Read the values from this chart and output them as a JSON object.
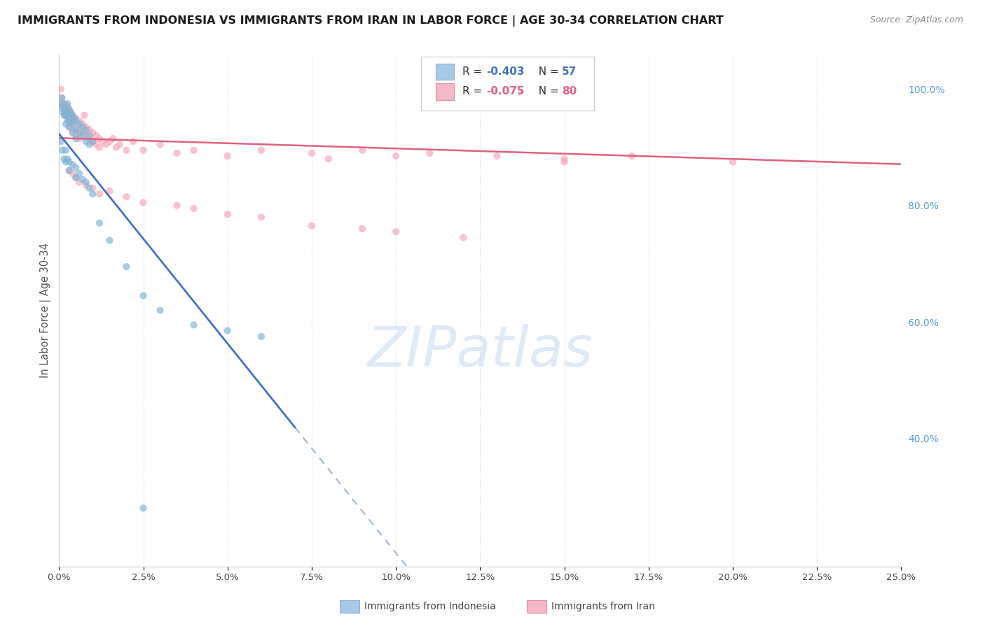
{
  "title": "IMMIGRANTS FROM INDONESIA VS IMMIGRANTS FROM IRAN IN LABOR FORCE | AGE 30-34 CORRELATION CHART",
  "source": "Source: ZipAtlas.com",
  "ylabel": "In Labor Force | Age 30-34",
  "xlim": [
    0.0,
    0.25
  ],
  "ylim": [
    0.18,
    1.06
  ],
  "right_yticks": [
    1.0,
    0.8,
    0.6,
    0.4
  ],
  "right_yticklabels": [
    "100.0%",
    "80.0%",
    "60.0%",
    "40.0%"
  ],
  "xticks": [
    0.0,
    0.025,
    0.05,
    0.075,
    0.1,
    0.125,
    0.15,
    0.175,
    0.2,
    0.225,
    0.25
  ],
  "xticklabels": [
    "0.0%",
    "2.5%",
    "5.0%",
    "7.5%",
    "10.0%",
    "12.5%",
    "15.0%",
    "17.5%",
    "20.0%",
    "22.5%",
    "25.0%"
  ],
  "background_color": "#ffffff",
  "grid_color": "#d8d8d8",
  "indonesia_color": "#7fb3d3",
  "iran_color": "#f4a7b9",
  "indonesia_line_color": "#4472c4",
  "iran_line_color": "#e06080",
  "trend_dashed_color": "#a0b8d0",
  "legend_indo_color": "#a8c8e8",
  "legend_iran_color": "#f4b8c8",
  "scatter_size": 55,
  "scatter_alpha": 0.65,
  "indonesia_scatter": [
    [
      0.0005,
      0.97
    ],
    [
      0.0008,
      0.985
    ],
    [
      0.001,
      0.975
    ],
    [
      0.0012,
      0.96
    ],
    [
      0.0015,
      0.965
    ],
    [
      0.0015,
      0.955
    ],
    [
      0.002,
      0.97
    ],
    [
      0.002,
      0.955
    ],
    [
      0.002,
      0.94
    ],
    [
      0.0025,
      0.975
    ],
    [
      0.0025,
      0.96
    ],
    [
      0.0025,
      0.945
    ],
    [
      0.003,
      0.965
    ],
    [
      0.003,
      0.95
    ],
    [
      0.003,
      0.935
    ],
    [
      0.0035,
      0.96
    ],
    [
      0.0035,
      0.945
    ],
    [
      0.004,
      0.955
    ],
    [
      0.004,
      0.94
    ],
    [
      0.004,
      0.925
    ],
    [
      0.0045,
      0.95
    ],
    [
      0.005,
      0.945
    ],
    [
      0.005,
      0.93
    ],
    [
      0.005,
      0.915
    ],
    [
      0.006,
      0.94
    ],
    [
      0.006,
      0.925
    ],
    [
      0.007,
      0.935
    ],
    [
      0.007,
      0.92
    ],
    [
      0.008,
      0.93
    ],
    [
      0.008,
      0.91
    ],
    [
      0.009,
      0.92
    ],
    [
      0.009,
      0.905
    ],
    [
      0.01,
      0.91
    ],
    [
      0.0005,
      0.91
    ],
    [
      0.001,
      0.895
    ],
    [
      0.0015,
      0.88
    ],
    [
      0.002,
      0.895
    ],
    [
      0.002,
      0.875
    ],
    [
      0.0025,
      0.88
    ],
    [
      0.003,
      0.875
    ],
    [
      0.003,
      0.86
    ],
    [
      0.004,
      0.87
    ],
    [
      0.005,
      0.865
    ],
    [
      0.005,
      0.848
    ],
    [
      0.006,
      0.855
    ],
    [
      0.007,
      0.845
    ],
    [
      0.008,
      0.84
    ],
    [
      0.009,
      0.83
    ],
    [
      0.01,
      0.82
    ],
    [
      0.012,
      0.77
    ],
    [
      0.015,
      0.74
    ],
    [
      0.02,
      0.695
    ],
    [
      0.025,
      0.645
    ],
    [
      0.03,
      0.62
    ],
    [
      0.04,
      0.595
    ],
    [
      0.05,
      0.585
    ],
    [
      0.06,
      0.575
    ],
    [
      0.025,
      0.28
    ]
  ],
  "iran_scatter": [
    [
      0.0005,
      1.0
    ],
    [
      0.0008,
      0.985
    ],
    [
      0.001,
      0.975
    ],
    [
      0.0012,
      0.97
    ],
    [
      0.0015,
      0.975
    ],
    [
      0.0015,
      0.96
    ],
    [
      0.002,
      0.965
    ],
    [
      0.002,
      0.955
    ],
    [
      0.0025,
      0.97
    ],
    [
      0.0025,
      0.955
    ],
    [
      0.003,
      0.965
    ],
    [
      0.003,
      0.948
    ],
    [
      0.003,
      0.935
    ],
    [
      0.0035,
      0.96
    ],
    [
      0.004,
      0.955
    ],
    [
      0.004,
      0.942
    ],
    [
      0.004,
      0.928
    ],
    [
      0.005,
      0.95
    ],
    [
      0.005,
      0.935
    ],
    [
      0.005,
      0.92
    ],
    [
      0.006,
      0.945
    ],
    [
      0.006,
      0.93
    ],
    [
      0.006,
      0.915
    ],
    [
      0.007,
      0.94
    ],
    [
      0.007,
      0.925
    ],
    [
      0.0075,
      0.955
    ],
    [
      0.008,
      0.935
    ],
    [
      0.008,
      0.92
    ],
    [
      0.009,
      0.93
    ],
    [
      0.009,
      0.915
    ],
    [
      0.01,
      0.925
    ],
    [
      0.01,
      0.91
    ],
    [
      0.011,
      0.92
    ],
    [
      0.011,
      0.905
    ],
    [
      0.012,
      0.915
    ],
    [
      0.012,
      0.9
    ],
    [
      0.013,
      0.91
    ],
    [
      0.014,
      0.905
    ],
    [
      0.015,
      0.91
    ],
    [
      0.016,
      0.915
    ],
    [
      0.017,
      0.9
    ],
    [
      0.018,
      0.905
    ],
    [
      0.02,
      0.895
    ],
    [
      0.022,
      0.91
    ],
    [
      0.025,
      0.895
    ],
    [
      0.03,
      0.905
    ],
    [
      0.035,
      0.89
    ],
    [
      0.04,
      0.895
    ],
    [
      0.05,
      0.885
    ],
    [
      0.06,
      0.895
    ],
    [
      0.075,
      0.89
    ],
    [
      0.09,
      0.895
    ],
    [
      0.1,
      0.885
    ],
    [
      0.11,
      0.89
    ],
    [
      0.13,
      0.885
    ],
    [
      0.15,
      0.88
    ],
    [
      0.17,
      0.885
    ],
    [
      0.003,
      0.86
    ],
    [
      0.004,
      0.855
    ],
    [
      0.005,
      0.848
    ],
    [
      0.006,
      0.84
    ],
    [
      0.008,
      0.835
    ],
    [
      0.01,
      0.83
    ],
    [
      0.012,
      0.82
    ],
    [
      0.015,
      0.825
    ],
    [
      0.02,
      0.815
    ],
    [
      0.025,
      0.805
    ],
    [
      0.035,
      0.8
    ],
    [
      0.04,
      0.795
    ],
    [
      0.05,
      0.785
    ],
    [
      0.06,
      0.78
    ],
    [
      0.075,
      0.765
    ],
    [
      0.09,
      0.76
    ],
    [
      0.1,
      0.755
    ],
    [
      0.12,
      0.745
    ],
    [
      0.08,
      0.88
    ],
    [
      0.15,
      0.875
    ],
    [
      0.2,
      0.875
    ]
  ],
  "indo_trend_x0": 0.0,
  "indo_trend_y0": 0.923,
  "indo_trend_slope": -7.2,
  "indo_trend_end_solid": 0.07,
  "iran_trend_x0": 0.0,
  "iran_trend_y0": 0.916,
  "iran_trend_slope": -0.18,
  "iran_trend_end": 0.25
}
